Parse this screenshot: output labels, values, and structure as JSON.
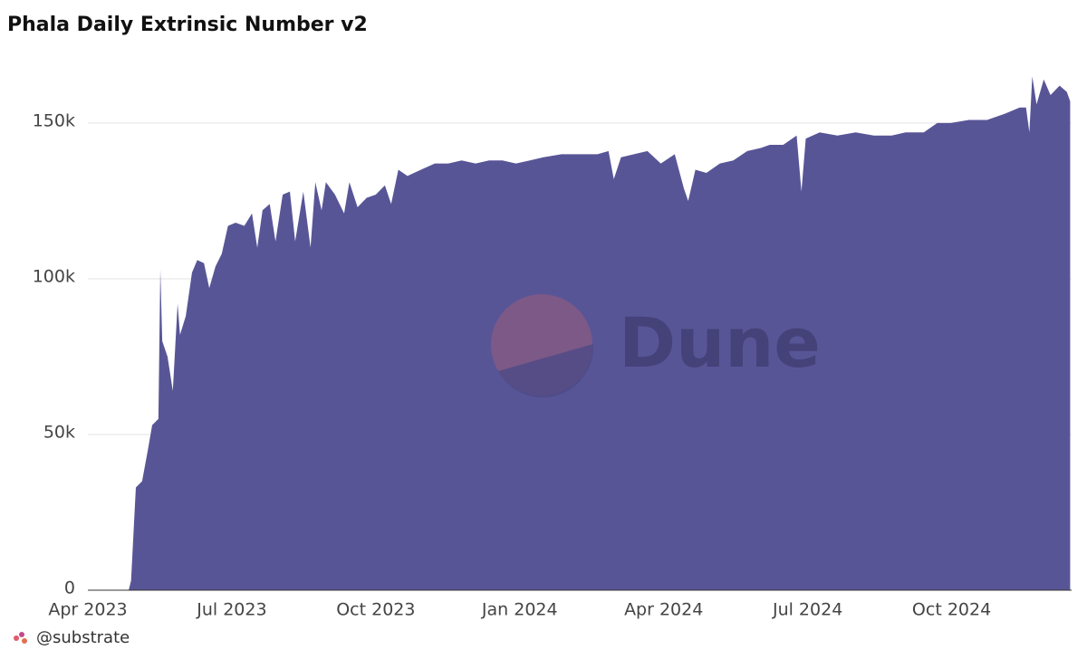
{
  "chart_data": {
    "type": "area",
    "title": "Phala Daily Extrinsic Number v2",
    "x": [
      0,
      0.4,
      0.85,
      0.9,
      1.0,
      1.13,
      1.25,
      1.34,
      1.47,
      1.51,
      1.55,
      1.66,
      1.77,
      1.87,
      1.92,
      2.04,
      2.17,
      2.28,
      2.42,
      2.53,
      2.66,
      2.79,
      2.92,
      3.08,
      3.26,
      3.42,
      3.53,
      3.64,
      3.79,
      3.91,
      4.06,
      4.21,
      4.32,
      4.49,
      4.64,
      4.74,
      4.87,
      4.96,
      5.15,
      5.34,
      5.45,
      5.62,
      5.81,
      6.0,
      6.19,
      6.32,
      6.47,
      6.66,
      6.94,
      7.23,
      7.51,
      7.79,
      8.08,
      8.36,
      8.64,
      8.92,
      9.21,
      9.49,
      9.87,
      10.25,
      10.62,
      10.85,
      10.96,
      11.11,
      11.38,
      11.66,
      11.94,
      12.23,
      12.42,
      12.51,
      12.66,
      12.89,
      13.17,
      13.45,
      13.74,
      14.02,
      14.21,
      14.49,
      14.77,
      14.87,
      14.96,
      15.25,
      15.62,
      16.0,
      16.38,
      16.75,
      17.04,
      17.42,
      17.7,
      17.98,
      18.36,
      18.74,
      19.11,
      19.42,
      19.55,
      19.62,
      19.68,
      19.77,
      19.92,
      20.06,
      20.25,
      20.4,
      20.47
    ],
    "series": [
      {
        "color": "#585597",
        "values": [
          0,
          0,
          0,
          3000,
          33000,
          35000,
          45000,
          53000,
          55000,
          103000,
          80000,
          75000,
          64000,
          92000,
          82000,
          88000,
          102000,
          106000,
          105000,
          97000,
          104000,
          108000,
          117000,
          118000,
          117000,
          121000,
          110000,
          122000,
          124000,
          112000,
          127000,
          128000,
          112000,
          128000,
          110000,
          131000,
          122000,
          131000,
          127000,
          121000,
          131000,
          123000,
          126000,
          127000,
          130000,
          124000,
          135000,
          133000,
          135000,
          137000,
          137000,
          138000,
          137000,
          138000,
          138000,
          137000,
          138000,
          139000,
          140000,
          140000,
          140000,
          141000,
          132000,
          139000,
          140000,
          141000,
          137000,
          140000,
          129000,
          125000,
          135000,
          134000,
          137000,
          138000,
          141000,
          142000,
          143000,
          143000,
          146000,
          128000,
          145000,
          147000,
          146000,
          147000,
          146000,
          146000,
          147000,
          147000,
          150000,
          150000,
          151000,
          151000,
          153000,
          155000,
          155000,
          147000,
          165000,
          156000,
          164000,
          159000,
          162000,
          160000,
          157000
        ]
      }
    ],
    "xlim": [
      0,
      20.5
    ],
    "xticks": [
      {
        "value": 0,
        "label": "Apr 2023"
      },
      {
        "value": 3,
        "label": "Jul 2023"
      },
      {
        "value": 6,
        "label": "Oct 2023"
      },
      {
        "value": 9,
        "label": "Jan 2024"
      },
      {
        "value": 12,
        "label": "Apr 2024"
      },
      {
        "value": 15,
        "label": "Jul 2024"
      },
      {
        "value": 18,
        "label": "Oct 2024"
      }
    ],
    "ylim": [
      0,
      168000
    ],
    "yticks": [
      {
        "value": 0,
        "label": "0"
      },
      {
        "value": 50000,
        "label": "50k"
      },
      {
        "value": 100000,
        "label": "100k"
      },
      {
        "value": 150000,
        "label": "150k"
      }
    ],
    "grid": true,
    "watermark": "Dune",
    "footer": "@substrate"
  }
}
